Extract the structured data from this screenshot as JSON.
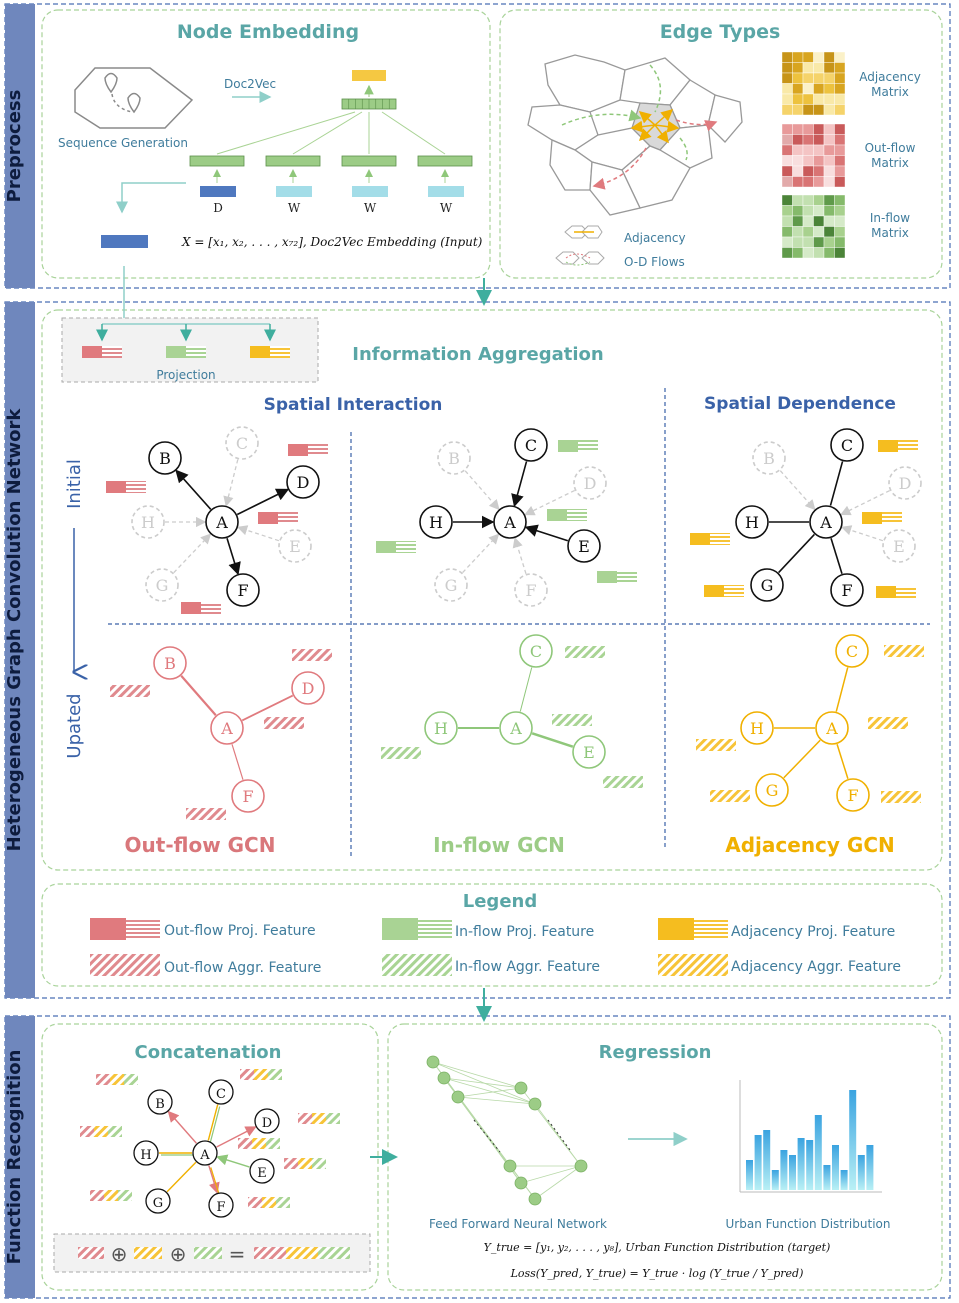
{
  "sections": {
    "preprocess": "Preprocess",
    "hgcn": "Heterogeneous Graph Convolution Network",
    "function_recognition": "Function Recognition"
  },
  "node_embedding": {
    "title": "Node Embedding",
    "doc2vec": "Doc2Vec",
    "sequence_generation": "Sequence Generation",
    "token_labels": [
      "D",
      "W",
      "W",
      "W"
    ],
    "formula": "X = [x₁, x₂, . . . , x₇₂],   Doc2Vec Embedding (Input)"
  },
  "edge_types": {
    "title": "Edge Types",
    "matrices": [
      "Adjacency Matrix",
      "Out-flow Matrix",
      "In-flow Matrix"
    ],
    "adjacency_label": "Adjacency",
    "od_label": "O-D Flows"
  },
  "projection_label": "Projection",
  "information_aggregation": "Information Aggregation",
  "spatial_interaction": "Spatial Interaction",
  "spatial_dependence": "Spatial Dependence",
  "initial_label": "Initial",
  "updated_label": "Upated",
  "gcn_titles": [
    "Out-flow GCN",
    "In-flow GCN",
    "Adjacency GCN"
  ],
  "node_names": [
    "A",
    "B",
    "C",
    "D",
    "E",
    "F",
    "G",
    "H"
  ],
  "legend": {
    "title": "Legend",
    "items": [
      "Out-flow Proj. Feature",
      "In-flow Proj. Feature",
      "Adjacency Proj. Feature",
      "Out-flow Aggr. Feature",
      "In-flow Aggr. Feature",
      "Adjacency Aggr. Feature"
    ]
  },
  "concatenation": "Concatenation",
  "regression": {
    "title": "Regression",
    "ffnn": "Feed Forward Neural Network",
    "ufd": "Urban Function Distribution",
    "ytrue": "Y_true = [y₁, y₂, . . . , y₈],   Urban Function Distribution (target)",
    "loss": "Loss(Y_pred, Y_true) = Y_true · log (Y_true / Y_pred)"
  },
  "colors": {
    "red": "#d9777b",
    "green": "#9ccc86",
    "yellow": "#f5bd1f",
    "blue_text": "#3a62a8",
    "teal_text": "#4e9c9c",
    "frame": "#4a6fb5"
  }
}
